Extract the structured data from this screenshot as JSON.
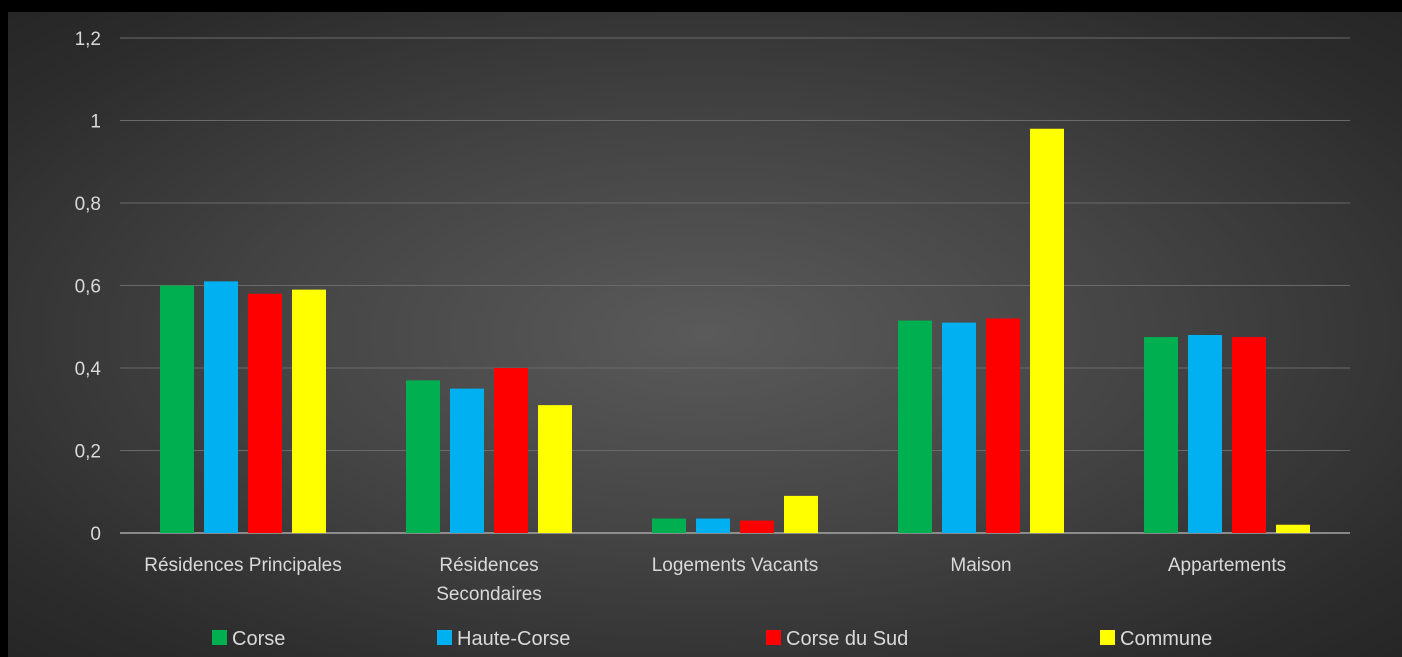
{
  "chart_data": {
    "type": "bar",
    "categories": [
      "Résidences Principales",
      "Résidences Secondaires",
      "Logements Vacants",
      "Maison",
      "Appartements"
    ],
    "series": [
      {
        "name": "Corse",
        "color": "#00b050",
        "values": [
          0.6,
          0.37,
          0.035,
          0.515,
          0.475
        ]
      },
      {
        "name": "Haute-Corse",
        "color": "#00b0f0",
        "values": [
          0.61,
          0.35,
          0.035,
          0.51,
          0.48
        ]
      },
      {
        "name": "Corse du Sud",
        "color": "#ff0000",
        "values": [
          0.58,
          0.4,
          0.03,
          0.52,
          0.475
        ]
      },
      {
        "name": "Commune",
        "color": "#ffff00",
        "values": [
          0.59,
          0.31,
          0.09,
          0.98,
          0.02
        ]
      }
    ],
    "yticks": [
      "0",
      "0,2",
      "0,4",
      "0,6",
      "0,8",
      "1",
      "1,2"
    ],
    "ylim": [
      0,
      1.2
    ],
    "grid": true,
    "legend_position": "bottom"
  }
}
